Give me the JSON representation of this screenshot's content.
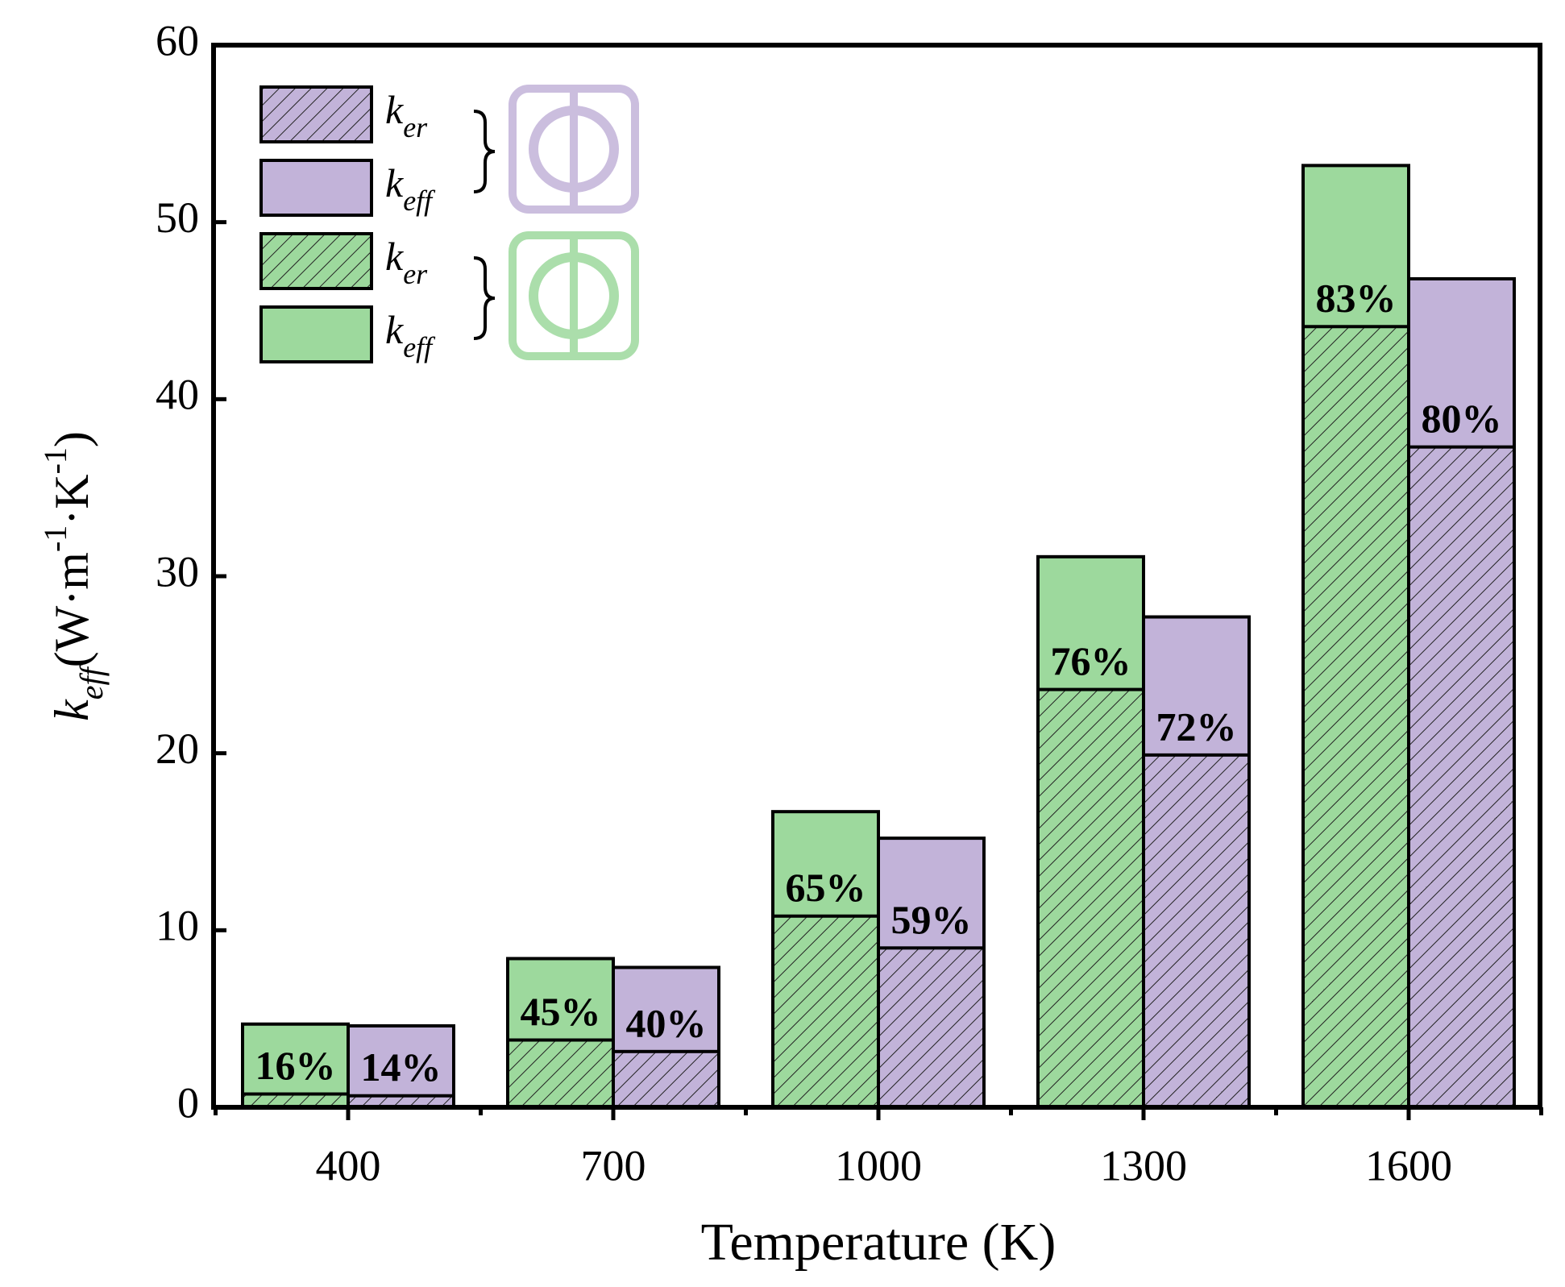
{
  "chart_data": {
    "type": "overlay_bar",
    "xlabel": "Temperature (K)",
    "ylabel": [
      {
        "text": "k",
        "italic": true
      },
      {
        "text": "eff",
        "italic": true,
        "shift": "sub"
      },
      {
        "text": "(W·m"
      },
      {
        "text": "-1",
        "shift": "super"
      },
      {
        "text": "·K"
      },
      {
        "text": "-1",
        "shift": "super"
      },
      {
        "text": ")"
      }
    ],
    "categories": [
      "400",
      "700",
      "1000",
      "1300",
      "1600"
    ],
    "ylim": [
      0,
      60
    ],
    "yticks": [
      0,
      10,
      20,
      30,
      40,
      50,
      60
    ],
    "groups": [
      {
        "color": "#9dd99d",
        "total": {
          "name": "k",
          "subscript": "eff",
          "values": [
            4.7,
            8.4,
            16.7,
            31.1,
            53.2
          ]
        },
        "part": {
          "name": "k",
          "subscript": "er",
          "values": [
            0.75,
            3.8,
            10.8,
            23.6,
            44.1
          ]
        },
        "annotations": [
          "16%",
          "45%",
          "65%",
          "76%",
          "83%"
        ]
      },
      {
        "color": "#c2b3d9",
        "total": {
          "name": "k",
          "subscript": "eff",
          "values": [
            4.6,
            7.9,
            15.2,
            27.7,
            46.8
          ]
        },
        "part": {
          "name": "k",
          "subscript": "er",
          "values": [
            0.65,
            3.15,
            9.0,
            19.9,
            37.3
          ]
        },
        "annotations": [
          "14%",
          "40%",
          "59%",
          "72%",
          "80%"
        ]
      }
    ]
  }
}
